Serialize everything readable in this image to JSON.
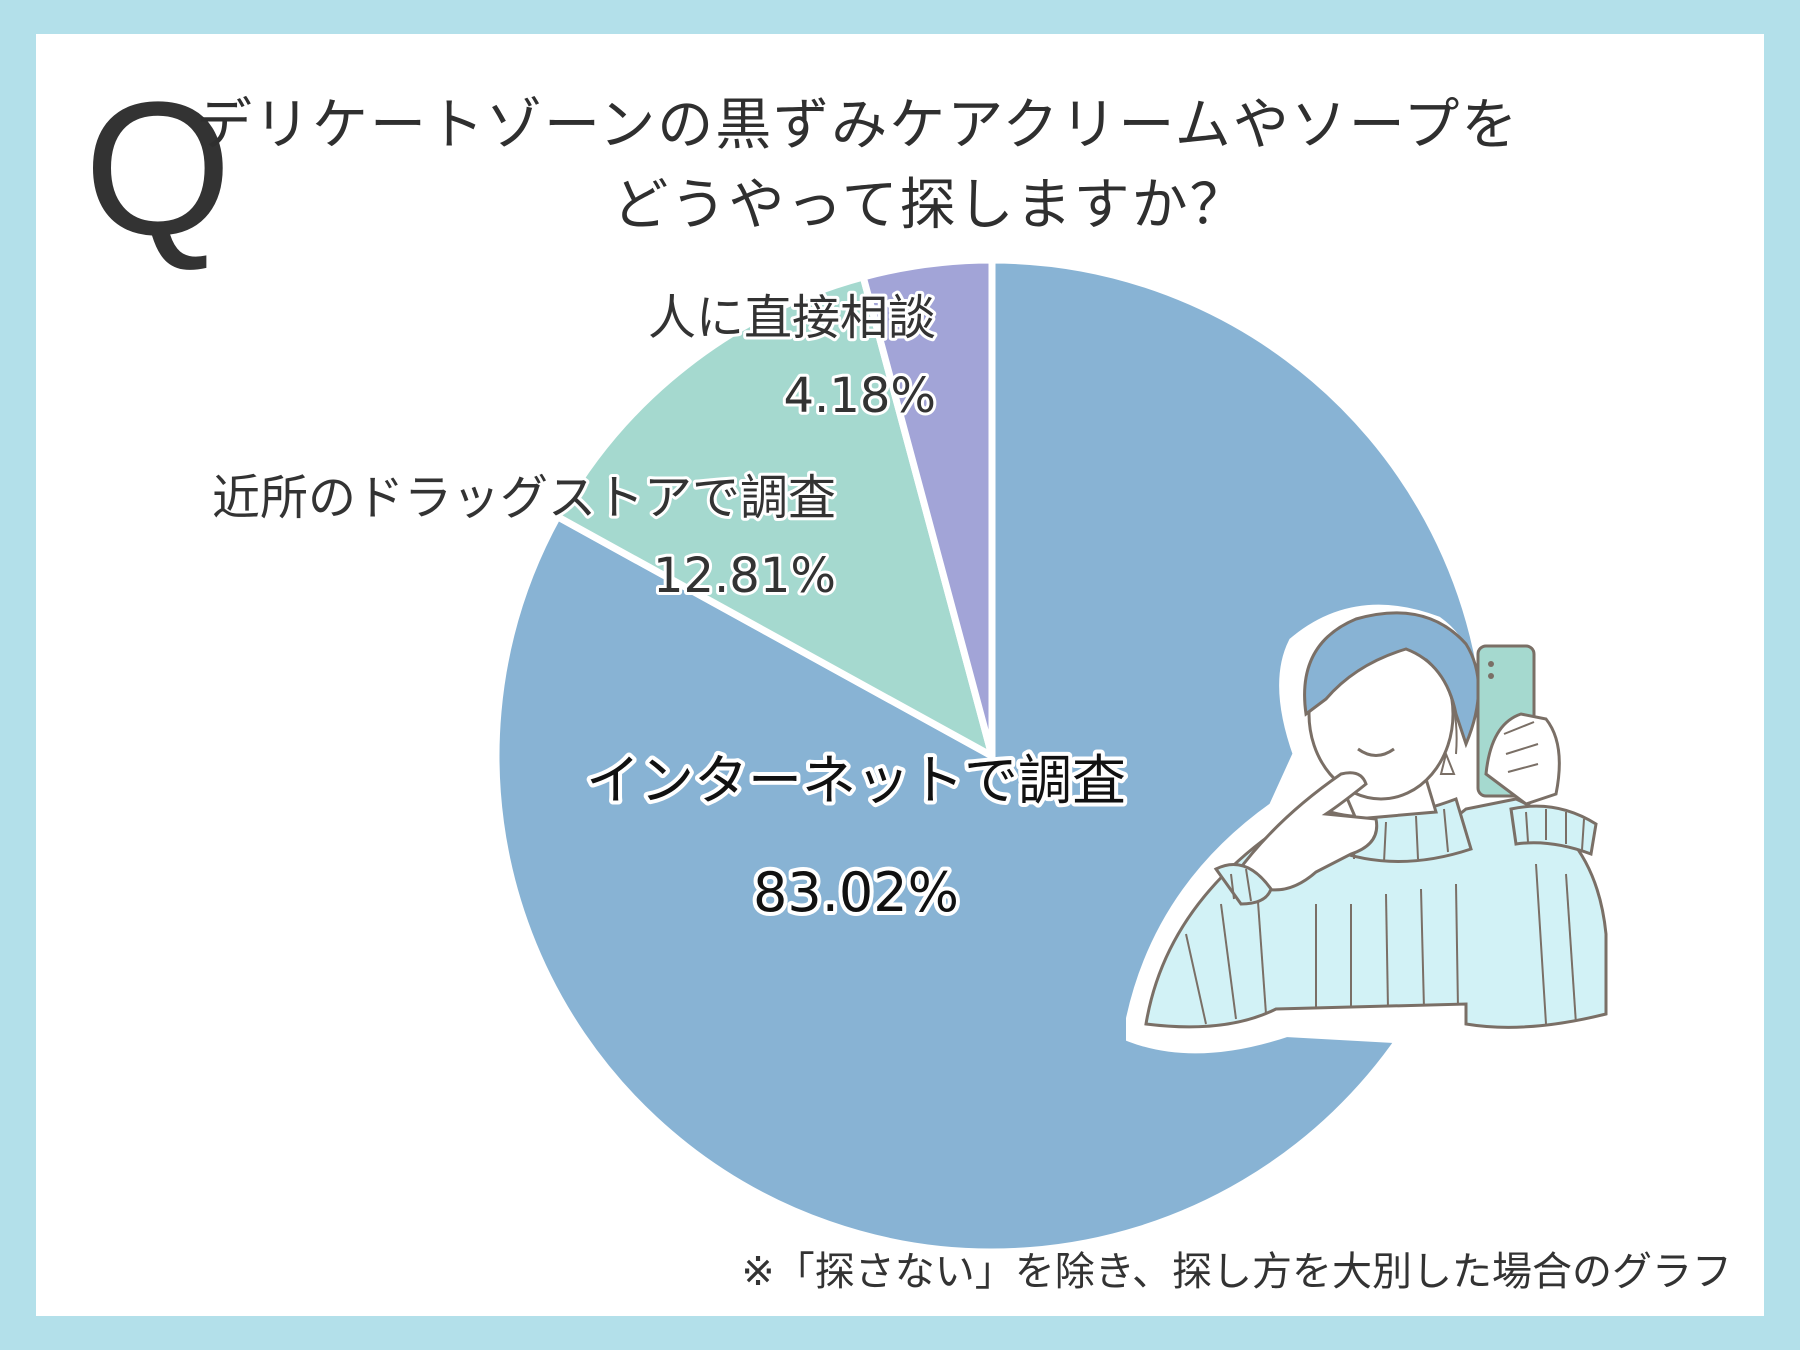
{
  "title": {
    "q_mark": "Q",
    "line1": "デリケートゾーンの黒ずみケアクリームやソープを",
    "line2": "どうやって探しますか？"
  },
  "footnote": "※「探さない」を除き、探し方を大別した場合のグラフ",
  "colors": {
    "background": "#b3e0ea",
    "card": "#ffffff",
    "internet": "#88b3d4",
    "drugstore": "#a5d9cf",
    "person": "#a2a4d7"
  },
  "chart_data": {
    "type": "pie",
    "start": "12 o'clock, clockwise",
    "slices": [
      {
        "label": "インターネットで調査",
        "value": 83.02,
        "value_label": "83.02%",
        "color": "#88b3d4"
      },
      {
        "label": "近所のドラッグストアで調査",
        "value": 12.81,
        "value_label": "12.81%",
        "color": "#a5d9cf"
      },
      {
        "label": "人に直接相談",
        "value": 4.18,
        "value_label": "4.18%",
        "color": "#a2a4d7"
      }
    ]
  },
  "illustration": {
    "icon": "woman-holding-smartphone-icon"
  }
}
